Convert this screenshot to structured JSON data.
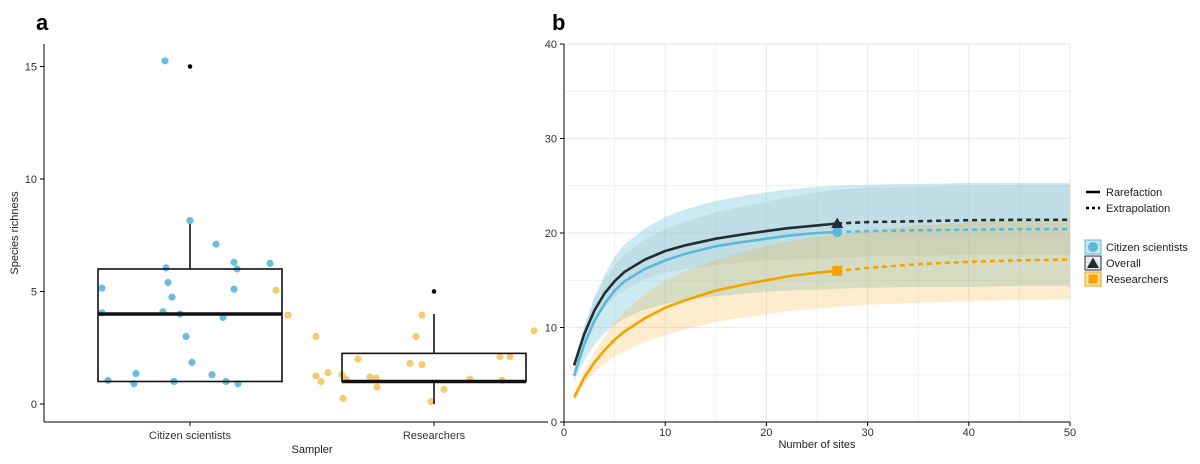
{
  "colors": {
    "citizen": "#5bb8d8",
    "researchers": "#f5a300",
    "researchers_points": "#f0c35a",
    "overall": "#1f2e33",
    "grid": "#ececec"
  },
  "chart_data": [
    {
      "panel": "a",
      "type": "box",
      "xlabel": "Sampler",
      "ylabel": "Species richness",
      "ylim": [
        -0.8,
        16
      ],
      "yticks": [
        0,
        5,
        10,
        15
      ],
      "categories": [
        "Citizen scientists",
        "Researchers"
      ],
      "boxes": [
        {
          "name": "Citizen scientists",
          "q1": 1,
          "median": 4,
          "q3": 6,
          "whisker_low": 1,
          "whisker_high": 8,
          "outliers": [
            15
          ]
        },
        {
          "name": "Researchers",
          "q1": 1,
          "median": 1,
          "q3": 2.25,
          "whisker_low": 0,
          "whisker_high": 4,
          "outliers": [
            5
          ]
        }
      ],
      "points": [
        {
          "group": "Citizen scientists",
          "values": [
            15.25,
            8.15,
            7.1,
            6.3,
            6.25,
            6.05,
            6.0,
            5.4,
            5.15,
            5.1,
            4.75,
            4.1,
            4.05,
            4.0,
            3.85,
            3.0,
            1.85,
            1.35,
            1.3,
            1.05,
            1.0,
            1.0,
            0.9,
            0.9
          ]
        },
        {
          "group": "Researchers",
          "values": [
            5.05,
            3.95,
            3.95,
            3.25,
            3.0,
            3.0,
            2.1,
            2.1,
            2.0,
            1.8,
            1.75,
            1.4,
            1.3,
            1.25,
            1.2,
            1.15,
            1.1,
            1.1,
            1.05,
            1.0,
            0.75,
            0.65,
            0.25,
            0.1
          ]
        }
      ]
    },
    {
      "panel": "b",
      "type": "line",
      "xlabel": "Number of sites",
      "ylabel": "",
      "xlim": [
        0,
        50
      ],
      "ylim": [
        0,
        40
      ],
      "xticks": [
        0,
        10,
        20,
        30,
        40,
        50
      ],
      "yticks": [
        0,
        10,
        20,
        30,
        40
      ],
      "observed_sites": 27,
      "x": [
        1,
        2,
        3,
        4,
        5,
        6,
        8,
        10,
        12,
        15,
        18,
        20,
        22,
        25,
        27,
        30,
        35,
        40,
        45,
        50
      ],
      "series": [
        {
          "name": "Overall",
          "values": [
            6.0,
            9.3,
            11.8,
            13.6,
            14.9,
            15.9,
            17.2,
            18.1,
            18.7,
            19.4,
            19.9,
            20.2,
            20.5,
            20.8,
            21.0,
            21.15,
            21.25,
            21.35,
            21.4,
            21.4
          ],
          "lower": [
            5.4,
            8.4,
            10.6,
            12.1,
            13.2,
            14.0,
            15.1,
            15.8,
            16.2,
            16.6,
            16.9,
            17.1,
            17.2,
            17.3,
            17.4,
            17.5,
            17.6,
            17.7,
            17.7,
            17.7
          ],
          "upper": [
            6.6,
            10.2,
            13.0,
            15.1,
            16.6,
            17.8,
            19.3,
            20.4,
            21.2,
            22.2,
            22.9,
            23.3,
            23.8,
            24.3,
            24.6,
            24.8,
            24.9,
            25.0,
            25.1,
            25.1
          ]
        },
        {
          "name": "Citizen scientists",
          "values": [
            4.9,
            8.2,
            10.7,
            12.5,
            13.9,
            14.9,
            16.2,
            17.1,
            17.8,
            18.6,
            19.1,
            19.4,
            19.7,
            20.0,
            20.1,
            20.2,
            20.3,
            20.35,
            20.4,
            20.4
          ],
          "lower": [
            4.3,
            6.5,
            8.2,
            9.4,
            10.3,
            11.0,
            11.9,
            12.5,
            12.9,
            13.3,
            13.6,
            13.8,
            13.9,
            14.0,
            14.1,
            14.2,
            14.3,
            14.3,
            14.4,
            14.4
          ],
          "upper": [
            5.5,
            9.9,
            13.2,
            15.6,
            17.5,
            18.8,
            20.5,
            21.7,
            22.5,
            23.4,
            24.0,
            24.3,
            24.6,
            24.9,
            25.0,
            25.1,
            25.2,
            25.3,
            25.3,
            25.3
          ]
        },
        {
          "name": "Researchers",
          "values": [
            2.6,
            4.7,
            6.3,
            7.6,
            8.7,
            9.6,
            11.0,
            12.1,
            12.9,
            13.9,
            14.6,
            15.0,
            15.4,
            15.8,
            16.0,
            16.3,
            16.7,
            16.95,
            17.1,
            17.2
          ],
          "lower": [
            2.3,
            4.0,
            5.2,
            6.2,
            6.9,
            7.5,
            8.5,
            9.2,
            9.8,
            10.6,
            11.1,
            11.4,
            11.7,
            12.0,
            12.2,
            12.4,
            12.6,
            12.8,
            12.9,
            13.0
          ],
          "upper": [
            2.9,
            5.4,
            7.4,
            9.0,
            10.5,
            11.7,
            13.5,
            15.0,
            16.0,
            17.2,
            18.1,
            18.6,
            19.1,
            19.6,
            19.8,
            20.2,
            20.8,
            21.1,
            21.3,
            21.4
          ]
        }
      ],
      "legend_method": {
        "items": [
          "Rarefaction",
          "Extrapolation"
        ],
        "position": "right"
      },
      "legend_groups": {
        "items": [
          "Citizen scientists",
          "Overall",
          "Researchers"
        ],
        "position": "right"
      }
    }
  ],
  "labels": {
    "panel_a": "a",
    "panel_b": "b"
  }
}
